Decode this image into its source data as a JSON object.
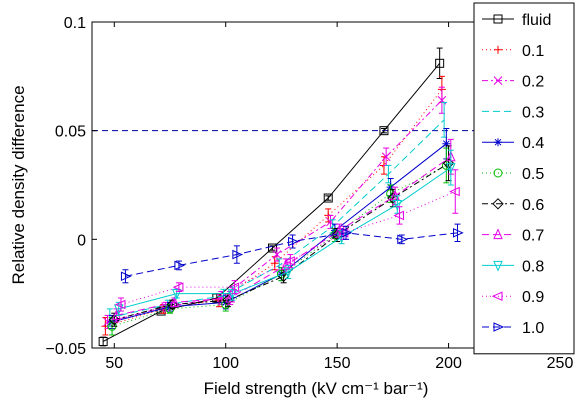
{
  "chart_data": {
    "type": "line",
    "title": "",
    "xlabel": "Field strength (kV cm⁻¹ bar⁻¹)",
    "ylabel": "Relative density difference",
    "xlim": [
      40,
      250
    ],
    "ylim": [
      -0.05,
      0.1
    ],
    "xticks": [
      "50",
      "100",
      "150",
      "200",
      "250"
    ],
    "yticks": [
      "−0.05",
      "0",
      "0.05",
      "0.1"
    ],
    "grid": false,
    "legend_position": "right",
    "reference_lines": [
      {
        "y": 0.05,
        "color": "#0000aa",
        "style": "dashed"
      },
      {
        "y": -0.05,
        "color": "#0000aa",
        "style": "dashed"
      }
    ],
    "series": [
      {
        "name": "fluid",
        "color": "#000000",
        "dash": "",
        "marker": "square",
        "x": [
          45,
          71,
          96,
          121,
          146,
          171,
          196
        ],
        "y": [
          -0.047,
          -0.033,
          -0.027,
          -0.004,
          0.019,
          0.05,
          0.081
        ],
        "err": [
          0.002,
          0.001,
          0.002,
          0.001,
          0.001,
          0.001,
          0.007
        ]
      },
      {
        "name": "0.1",
        "color": "#ff0000",
        "dash": "1,3",
        "marker": "plus",
        "x": [
          46,
          72,
          97,
          122,
          146,
          171,
          197
        ],
        "y": [
          -0.04,
          -0.032,
          -0.028,
          -0.011,
          0.011,
          0.034,
          0.069
        ],
        "err": [
          0.004,
          0.002,
          0.003,
          0.003,
          0.003,
          0.004,
          0.006
        ]
      },
      {
        "name": "0.2",
        "color": "#e600e6",
        "dash": "6,3,2,3",
        "marker": "x",
        "x": [
          47,
          73,
          98,
          123,
          147,
          172,
          197
        ],
        "y": [
          -0.038,
          -0.031,
          -0.027,
          -0.007,
          0.008,
          0.038,
          0.064
        ],
        "err": [
          0.003,
          0.002,
          0.003,
          0.003,
          0.003,
          0.004,
          0.006
        ]
      },
      {
        "name": "0.3",
        "color": "#00cccc",
        "dash": "7,4",
        "marker": "none",
        "x": [
          48,
          74,
          99,
          124,
          148,
          173,
          198
        ],
        "y": [
          -0.036,
          -0.03,
          -0.026,
          -0.012,
          0.006,
          0.03,
          0.055
        ],
        "err": [
          0.004,
          0.002,
          0.003,
          0.003,
          0.003,
          0.004,
          0.008
        ]
      },
      {
        "name": "0.4",
        "color": "#0000cc",
        "dash": "",
        "marker": "star",
        "x": [
          49,
          75,
          100,
          125,
          149,
          174,
          199
        ],
        "y": [
          -0.038,
          -0.031,
          -0.029,
          -0.016,
          0.004,
          0.024,
          0.044
        ],
        "err": [
          0.003,
          0.002,
          0.003,
          0.003,
          0.003,
          0.004,
          0.007
        ]
      },
      {
        "name": "0.5",
        "color": "#00bb00",
        "dash": "1,3",
        "marker": "circle",
        "x": [
          49,
          75,
          100,
          125,
          149,
          174,
          199
        ],
        "y": [
          -0.04,
          -0.032,
          -0.03,
          -0.016,
          0.002,
          0.021,
          0.034
        ],
        "err": [
          0.004,
          0.002,
          0.003,
          0.003,
          0.003,
          0.004,
          0.008
        ]
      },
      {
        "name": "0.6",
        "color": "#000000",
        "dash": "6,3,2,3",
        "marker": "diamond",
        "x": [
          50,
          76,
          101,
          126,
          150,
          175,
          200
        ],
        "y": [
          -0.037,
          -0.03,
          -0.028,
          -0.017,
          0.002,
          0.019,
          0.035
        ],
        "err": [
          0.003,
          0.002,
          0.003,
          0.003,
          0.003,
          0.004,
          0.008
        ]
      },
      {
        "name": "0.7",
        "color": "#e600e6",
        "dash": "7,4",
        "marker": "triangle-up",
        "x": [
          51,
          77,
          102,
          127,
          151,
          176,
          201
        ],
        "y": [
          -0.035,
          -0.029,
          -0.027,
          -0.012,
          0.004,
          0.02,
          0.038
        ],
        "err": [
          0.003,
          0.002,
          0.003,
          0.003,
          0.003,
          0.004,
          0.008
        ]
      },
      {
        "name": "0.8",
        "color": "#00cccc",
        "dash": "",
        "marker": "triangle-down",
        "x": [
          52,
          78,
          103,
          128,
          152,
          177,
          201
        ],
        "y": [
          -0.032,
          -0.025,
          -0.025,
          -0.015,
          0.001,
          0.016,
          0.033
        ],
        "err": [
          0.003,
          0.002,
          0.003,
          0.003,
          0.003,
          0.004,
          0.008
        ]
      },
      {
        "name": "0.9",
        "color": "#e600e6",
        "dash": "1,3",
        "marker": "triangle-left",
        "x": [
          53,
          79,
          104,
          129,
          153,
          178,
          203
        ],
        "y": [
          -0.03,
          -0.022,
          -0.022,
          -0.01,
          0.003,
          0.011,
          0.022
        ],
        "err": [
          0.003,
          0.002,
          0.003,
          0.003,
          0.003,
          0.004,
          0.01
        ]
      },
      {
        "name": "1.0",
        "color": "#0000cc",
        "dash": "7,4",
        "marker": "triangle-right",
        "x": [
          55,
          79,
          105,
          130,
          154,
          179,
          204
        ],
        "y": [
          -0.017,
          -0.012,
          -0.007,
          -0.001,
          0.003,
          0.0,
          0.003
        ],
        "err": [
          0.003,
          0.002,
          0.004,
          0.003,
          0.003,
          0.002,
          0.004
        ]
      }
    ]
  }
}
